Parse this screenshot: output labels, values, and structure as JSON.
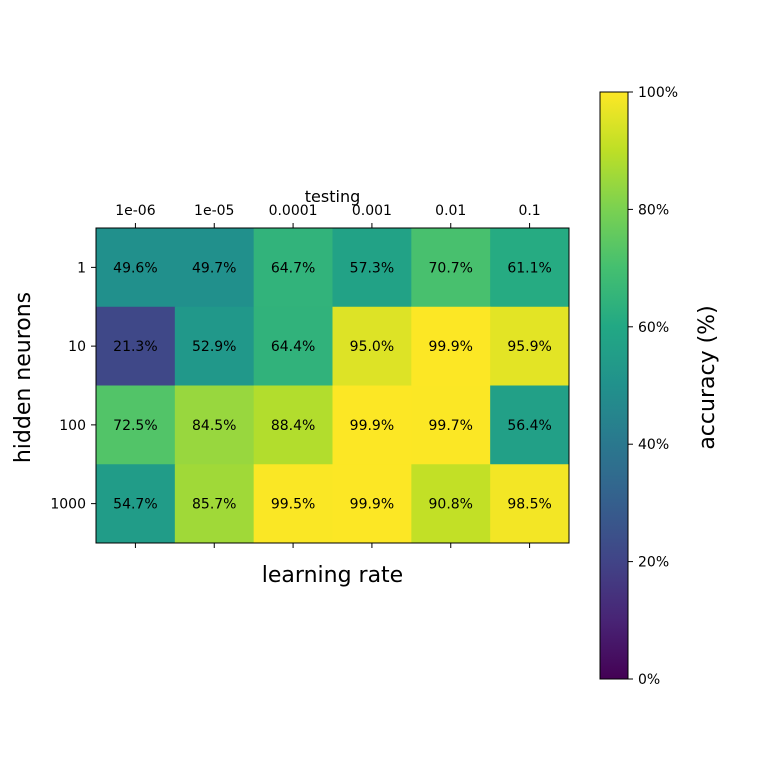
{
  "chart_data": {
    "type": "heatmap",
    "title": "testing",
    "xlabel": "learning rate",
    "ylabel": "hidden neurons",
    "x_categories": [
      "1e-06",
      "1e-05",
      "0.0001",
      "0.001",
      "0.01",
      "0.1"
    ],
    "y_categories": [
      "1",
      "10",
      "100",
      "1000"
    ],
    "values": [
      [
        49.6,
        49.7,
        64.7,
        57.3,
        70.7,
        61.1
      ],
      [
        21.3,
        52.9,
        64.4,
        95.0,
        99.9,
        95.9
      ],
      [
        72.5,
        84.5,
        88.4,
        99.9,
        99.7,
        56.4
      ],
      [
        54.7,
        85.7,
        99.5,
        99.9,
        90.8,
        98.5
      ]
    ],
    "cell_labels": [
      [
        "49.6%",
        "49.7%",
        "64.7%",
        "57.3%",
        "70.7%",
        "61.1%"
      ],
      [
        "21.3%",
        "52.9%",
        "64.4%",
        "95.0%",
        "99.9%",
        "95.9%"
      ],
      [
        "72.5%",
        "84.5%",
        "88.4%",
        "99.9%",
        "99.7%",
        "56.4%"
      ],
      [
        "54.7%",
        "85.7%",
        "99.5%",
        "99.9%",
        "90.8%",
        "98.5%"
      ]
    ],
    "colormap": "viridis",
    "value_range": [
      0,
      100
    ],
    "colorbar": {
      "label": "accuracy (%)",
      "ticks": [
        0,
        20,
        40,
        60,
        80,
        100
      ],
      "tick_labels": [
        "0%",
        "20%",
        "40%",
        "60%",
        "80%",
        "100%"
      ]
    },
    "x_tick_position": "top",
    "grid": false,
    "legend": "colorbar-right"
  }
}
